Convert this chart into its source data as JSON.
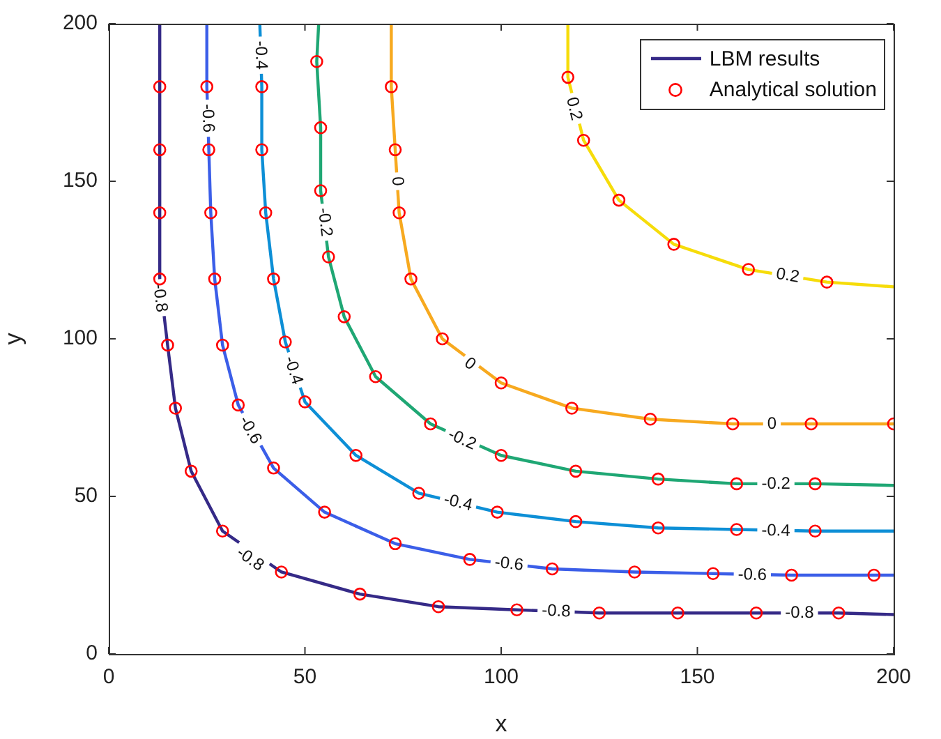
{
  "chart_data": {
    "type": "line",
    "xlabel": "x",
    "ylabel": "y",
    "xlim": [
      0,
      200
    ],
    "ylim": [
      0,
      200
    ],
    "xticks": [
      0,
      50,
      100,
      150,
      200
    ],
    "yticks": [
      0,
      50,
      100,
      150,
      200
    ],
    "grid": false,
    "legend": "top right",
    "series": [
      {
        "name": "LBM results",
        "color": "#352a87",
        "x": [
          13,
          13,
          13,
          13,
          13,
          15,
          17,
          21,
          29,
          44,
          64,
          84,
          104,
          125,
          145,
          165,
          186,
          200
        ],
        "values": [
          200,
          180,
          160,
          140,
          119,
          98,
          78,
          58,
          39,
          26,
          19,
          15,
          14,
          13,
          13,
          13,
          13,
          12.5
        ]
      },
      {
        "color": "#3b5ee8",
        "x": [
          25,
          25,
          25.5,
          26,
          27,
          29,
          33,
          42,
          55,
          73,
          92,
          113,
          134,
          154,
          174,
          195,
          200
        ],
        "values": [
          200,
          180,
          160,
          140,
          119,
          98,
          79,
          59,
          45,
          35,
          30,
          27,
          26,
          25.5,
          25,
          25,
          25
        ]
      },
      {
        "color": "#0d8fd6",
        "x": [
          38.5,
          39,
          39,
          40,
          42,
          45,
          50,
          63,
          79,
          99,
          119,
          140,
          160,
          180,
          200
        ],
        "values": [
          200,
          180,
          160,
          140,
          119,
          99,
          80,
          63,
          51,
          45,
          42,
          40,
          39.5,
          39,
          39
        ]
      },
      {
        "color": "#1fa774",
        "x": [
          53.5,
          53,
          54,
          54,
          56,
          60,
          68,
          82,
          100,
          119,
          140,
          160,
          180,
          200
        ],
        "values": [
          200,
          188,
          167,
          147,
          126,
          107,
          88,
          73,
          63,
          58,
          55.5,
          54,
          54,
          53.5
        ]
      },
      {
        "color": "#f7a91f",
        "x": [
          72,
          72,
          73,
          74,
          77,
          85,
          100,
          118,
          138,
          159,
          179,
          200
        ],
        "values": [
          200,
          180,
          160,
          140,
          119,
          100,
          86,
          78,
          74.5,
          73,
          73,
          73
        ]
      },
      {
        "color": "#f6dc0a",
        "x": [
          117,
          117,
          121,
          130,
          144,
          163,
          183,
          200
        ],
        "values": [
          200,
          183,
          163,
          144,
          130,
          122,
          118,
          116.5
        ]
      },
      {
        "type": "scatter",
        "name": "Analytical solution",
        "color": "#ff0000",
        "marker": "circle",
        "x": [
          13,
          13,
          13,
          13,
          15,
          17,
          21,
          29,
          44,
          64,
          84,
          104,
          125,
          145,
          165,
          186,
          25,
          25.5,
          26,
          27,
          29,
          33,
          42,
          55,
          73,
          92,
          113,
          134,
          154,
          174,
          195,
          39,
          39,
          40,
          42,
          45,
          50,
          63,
          79,
          99,
          119,
          140,
          160,
          180,
          53,
          54,
          54,
          56,
          60,
          68,
          82,
          100,
          119,
          140,
          160,
          180,
          72,
          73,
          74,
          77,
          85,
          100,
          118,
          138,
          159,
          179,
          200,
          117,
          121,
          130,
          144,
          163,
          183
        ],
        "values": [
          180,
          160,
          140,
          119,
          98,
          78,
          58,
          39,
          26,
          19,
          15,
          14,
          13,
          13,
          13,
          13,
          180,
          160,
          140,
          119,
          98,
          79,
          59,
          45,
          35,
          30,
          27,
          26,
          25.5,
          25,
          25,
          180,
          160,
          140,
          119,
          99,
          80,
          63,
          51,
          45,
          42,
          40,
          39.5,
          39,
          188,
          167,
          147,
          126,
          107,
          88,
          73,
          63,
          58,
          55.5,
          54,
          54,
          180,
          160,
          140,
          119,
          100,
          86,
          78,
          74.5,
          73,
          73,
          73,
          183,
          163,
          144,
          130,
          122,
          118
        ]
      }
    ],
    "annotations": [
      {
        "text": "-0.8",
        "x": 13,
        "y": 113
      },
      {
        "text": "-0.8",
        "x": 36,
        "y": 30
      },
      {
        "text": "-0.8",
        "x": 114,
        "y": 13.5
      },
      {
        "text": "-0.8",
        "x": 176,
        "y": 13
      },
      {
        "text": "-0.6",
        "x": 25.2,
        "y": 170
      },
      {
        "text": "-0.6",
        "x": 36,
        "y": 71
      },
      {
        "text": "-0.6",
        "x": 102,
        "y": 28.5
      },
      {
        "text": "-0.6",
        "x": 164,
        "y": 25
      },
      {
        "text": "-0.4",
        "x": 38.7,
        "y": 190
      },
      {
        "text": "-0.4",
        "x": 47,
        "y": 90
      },
      {
        "text": "-0.4",
        "x": 89,
        "y": 48
      },
      {
        "text": "-0.4",
        "x": 170,
        "y": 39
      },
      {
        "text": "-0.2",
        "x": 55,
        "y": 137
      },
      {
        "text": "-0.2",
        "x": 90,
        "y": 68
      },
      {
        "text": "-0.2",
        "x": 170,
        "y": 54
      },
      {
        "text": "0",
        "x": 73.5,
        "y": 150
      },
      {
        "text": "0",
        "x": 92,
        "y": 92
      },
      {
        "text": "0",
        "x": 169,
        "y": 73
      },
      {
        "text": "0.2",
        "x": 118.5,
        "y": 173
      },
      {
        "text": "0.2",
        "x": 173,
        "y": 120
      }
    ]
  }
}
